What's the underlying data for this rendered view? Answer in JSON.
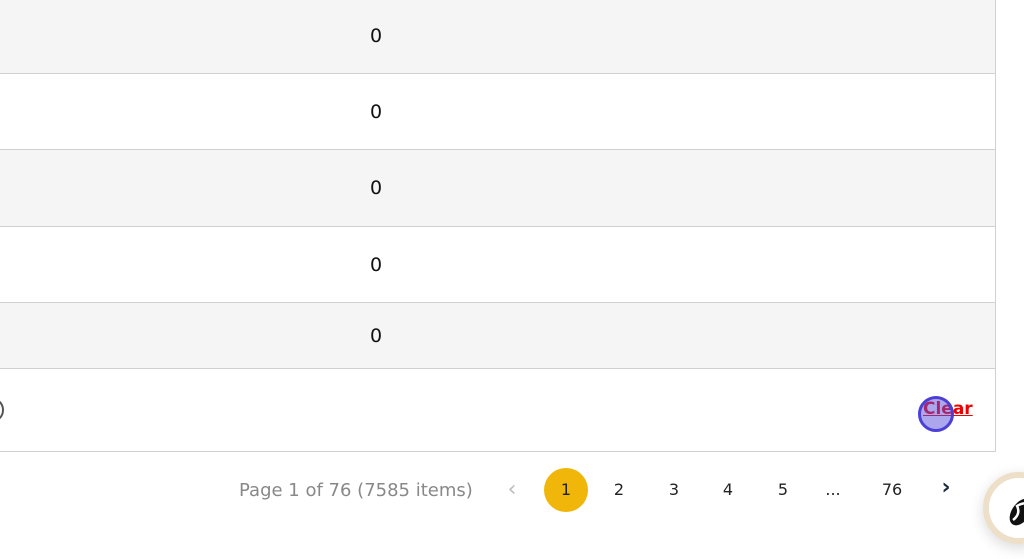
{
  "table": {
    "rows": [
      {
        "value": "0"
      },
      {
        "value": "0"
      },
      {
        "value": "0"
      },
      {
        "value": "0"
      },
      {
        "value": "0"
      }
    ],
    "footer": {
      "clear_label": "Clear"
    }
  },
  "pagination": {
    "info": "Page 1 of 76 (7585 items)",
    "prev_icon": "chevron-left-icon",
    "next_icon": "chevron-right-icon",
    "pages": [
      "1",
      "2",
      "3",
      "4",
      "5",
      "...",
      "76"
    ],
    "current_page": "1",
    "prev_glyph": "‹",
    "next_glyph": "›"
  },
  "colors": {
    "active_page": "#f0b70a",
    "clear_link": "#ee0000"
  }
}
